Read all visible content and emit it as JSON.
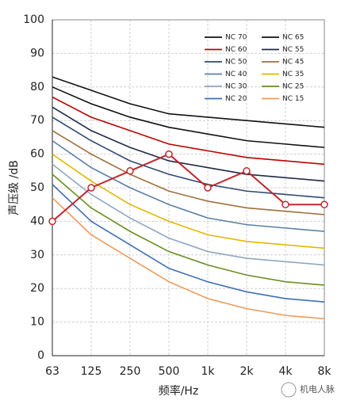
{
  "chart_data": {
    "type": "line",
    "x_label": "频率/Hz",
    "y_label": "声压级 /dB",
    "watermark": "机电人脉",
    "categories": [
      "63",
      "125",
      "250",
      "500",
      "1k",
      "2k",
      "4k",
      "8k"
    ],
    "ylim": [
      0,
      100
    ],
    "yticks": [
      0,
      10,
      20,
      30,
      40,
      50,
      60,
      70,
      80,
      90,
      100
    ],
    "grid": true,
    "legend": "top-right",
    "series": [
      {
        "name": "NC 70",
        "color": "#111111",
        "values": [
          83,
          79,
          75,
          72,
          71,
          70,
          69,
          68
        ]
      },
      {
        "name": "NC 65",
        "color": "#111111",
        "values": [
          80,
          75,
          71,
          68,
          66,
          64,
          63,
          62
        ]
      },
      {
        "name": "NC 60",
        "color": "#c00000",
        "values": [
          77,
          71,
          67,
          63,
          61,
          59,
          58,
          57
        ]
      },
      {
        "name": "NC 55",
        "color": "#1f2a44",
        "values": [
          74,
          67,
          62,
          58,
          56,
          54,
          53,
          52
        ]
      },
      {
        "name": "NC 50",
        "color": "#2f4a6e",
        "values": [
          71,
          64,
          58,
          54,
          51,
          49,
          48,
          47
        ]
      },
      {
        "name": "NC 45",
        "color": "#a0703c",
        "values": [
          67,
          60,
          54,
          49,
          46,
          44,
          43,
          42
        ]
      },
      {
        "name": "NC 40",
        "color": "#5b7fa6",
        "values": [
          64,
          56,
          50,
          45,
          41,
          39,
          38,
          37
        ]
      },
      {
        "name": "NC 35",
        "color": "#e0b800",
        "values": [
          60,
          52,
          45,
          40,
          36,
          34,
          33,
          32
        ]
      },
      {
        "name": "NC 30",
        "color": "#8fa7c0",
        "values": [
          57,
          48,
          41,
          35,
          31,
          29,
          28,
          27
        ]
      },
      {
        "name": "NC 25",
        "color": "#6b8e23",
        "values": [
          54,
          44,
          37,
          31,
          27,
          24,
          22,
          21
        ]
      },
      {
        "name": "NC 20",
        "color": "#3f6fb5",
        "values": [
          51,
          40,
          33,
          26,
          22,
          19,
          17,
          16
        ]
      },
      {
        "name": "NC 15",
        "color": "#ed9a5b",
        "values": [
          47,
          36,
          29,
          22,
          17,
          14,
          12,
          11
        ]
      },
      {
        "color": "#c0272d",
        "markers": true,
        "values": [
          40,
          50,
          55,
          60,
          50,
          55,
          45,
          45
        ]
      }
    ]
  }
}
